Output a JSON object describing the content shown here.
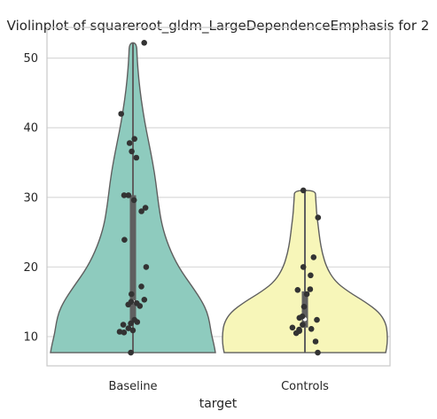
{
  "chart_data": {
    "type": "violin",
    "title": "Violinplot of squareroot_gldm_LargeDependenceEmphasis for 2",
    "xlabel": "target",
    "ylabel": "",
    "categories": [
      "Baseline",
      "Controls"
    ],
    "ylim": [
      5.8,
      54.4
    ],
    "yticks": [
      10,
      20,
      30,
      40,
      50
    ],
    "grid": "horizontal",
    "colors": {
      "Baseline": "#8ecbbe",
      "Controls": "#f7f6b9",
      "outline": "#5f5f5f",
      "points": "#333333",
      "box": "#5f5f5f",
      "grid": "#d6d6d6",
      "frame": "#c9c9c9"
    },
    "groups": [
      {
        "name": "Baseline",
        "range": [
          7.7,
          52.2
        ],
        "quartiles": [
          12.0,
          15.0,
          30.3
        ],
        "density": [
          [
            7.7,
            1.0
          ],
          [
            9.0,
            0.98
          ],
          [
            10.5,
            0.95
          ],
          [
            12.0,
            0.93
          ],
          [
            13.5,
            0.9
          ],
          [
            15.0,
            0.84
          ],
          [
            17.0,
            0.73
          ],
          [
            20.0,
            0.55
          ],
          [
            23.0,
            0.43
          ],
          [
            26.0,
            0.35
          ],
          [
            29.0,
            0.31
          ],
          [
            32.0,
            0.28
          ],
          [
            35.0,
            0.24
          ],
          [
            38.0,
            0.19
          ],
          [
            41.0,
            0.14
          ],
          [
            44.0,
            0.1
          ],
          [
            47.0,
            0.07
          ],
          [
            50.0,
            0.05
          ],
          [
            52.2,
            0.045
          ]
        ],
        "points": [
          52.2,
          42.0,
          38.4,
          37.8,
          36.6,
          35.7,
          30.3,
          30.3,
          29.6,
          28.5,
          28.0,
          23.9,
          20.0,
          17.2,
          16.1,
          15.3,
          15.0,
          14.8,
          14.6,
          14.4,
          12.4,
          12.1,
          11.9,
          11.7,
          11.2,
          10.9,
          10.7,
          10.6,
          7.7
        ]
      },
      {
        "name": "Controls",
        "range": [
          7.7,
          31.0
        ],
        "quartiles": [
          11.3,
          12.5,
          16.5
        ],
        "density": [
          [
            7.7,
            0.98
          ],
          [
            9.0,
            1.0
          ],
          [
            10.5,
            1.0
          ],
          [
            12.0,
            0.98
          ],
          [
            13.5,
            0.9
          ],
          [
            15.0,
            0.73
          ],
          [
            16.5,
            0.52
          ],
          [
            18.0,
            0.36
          ],
          [
            20.0,
            0.26
          ],
          [
            22.0,
            0.21
          ],
          [
            24.0,
            0.18
          ],
          [
            26.0,
            0.16
          ],
          [
            28.0,
            0.14
          ],
          [
            30.0,
            0.13
          ],
          [
            31.0,
            0.125
          ]
        ],
        "points": [
          31.0,
          27.1,
          21.4,
          20.0,
          18.8,
          16.8,
          16.7,
          16.1,
          14.3,
          12.9,
          12.7,
          12.4,
          11.7,
          11.3,
          11.1,
          11.0,
          10.8,
          10.5,
          9.3,
          7.7
        ]
      }
    ]
  }
}
